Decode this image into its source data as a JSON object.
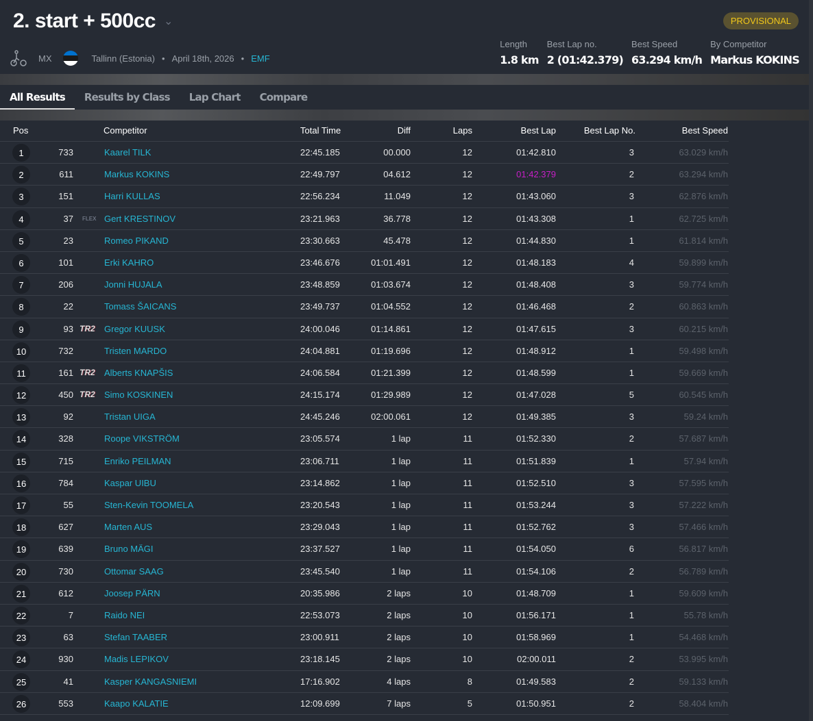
{
  "header": {
    "title": "2. start + 500cc",
    "sport": "MX",
    "location": "Tallinn (Estonia)",
    "date": "April 18th, 2026",
    "organizer": "EMF",
    "status": "PROVISIONAL",
    "stats": [
      {
        "label": "Length",
        "value": "1.8 km"
      },
      {
        "label": "Best Lap no.",
        "value": "2 (01:42.379)"
      },
      {
        "label": "Best Speed",
        "value": "63.294 km/h"
      },
      {
        "label": "By Competitor",
        "value": "Markus KOKINS"
      }
    ],
    "flag_colors": [
      "#0072ce",
      "#000000",
      "#ffffff"
    ]
  },
  "tabs": [
    "All Results",
    "Results by Class",
    "Lap Chart",
    "Compare"
  ],
  "table": {
    "columns": [
      "Pos",
      "Competitor",
      "Total Time",
      "Diff",
      "Laps",
      "Best Lap",
      "Best Lap No.",
      "Best Speed"
    ],
    "highlight_color": "#c71fc7",
    "rows": [
      [
        "1",
        "733",
        "",
        "Kaarel TILK",
        "22:45.185",
        "00.000",
        "12",
        "01:42.810",
        "3",
        "63.029 km/h"
      ],
      [
        "2",
        "611",
        "",
        "Markus KOKINS",
        "22:49.797",
        "04.612",
        "12",
        "01:42.379",
        "2",
        "63.294 km/h"
      ],
      [
        "3",
        "151",
        "",
        "Harri KULLAS",
        "22:56.234",
        "11.049",
        "12",
        "01:43.060",
        "3",
        "62.876 km/h"
      ],
      [
        "4",
        "37",
        "FLEX",
        "Gert KRESTINOV",
        "23:21.963",
        "36.778",
        "12",
        "01:43.308",
        "1",
        "62.725 km/h"
      ],
      [
        "5",
        "23",
        "",
        "Romeo PIKAND",
        "23:30.663",
        "45.478",
        "12",
        "01:44.830",
        "1",
        "61.814 km/h"
      ],
      [
        "6",
        "101",
        "",
        "Erki KAHRO",
        "23:46.676",
        "01:01.491",
        "12",
        "01:48.183",
        "4",
        "59.899 km/h"
      ],
      [
        "7",
        "206",
        "",
        "Jonni HUJALA",
        "23:48.859",
        "01:03.674",
        "12",
        "01:48.408",
        "3",
        "59.774 km/h"
      ],
      [
        "8",
        "22",
        "",
        "Tomass ŠAICANS",
        "23:49.737",
        "01:04.552",
        "12",
        "01:46.468",
        "2",
        "60.863 km/h"
      ],
      [
        "9",
        "93",
        "TR2",
        "Gregor KUUSK",
        "24:00.046",
        "01:14.861",
        "12",
        "01:47.615",
        "3",
        "60.215 km/h"
      ],
      [
        "10",
        "732",
        "",
        "Tristen MARDO",
        "24:04.881",
        "01:19.696",
        "12",
        "01:48.912",
        "1",
        "59.498 km/h"
      ],
      [
        "11",
        "161",
        "TR2",
        "Alberts KNAPŠIS",
        "24:06.584",
        "01:21.399",
        "12",
        "01:48.599",
        "1",
        "59.669 km/h"
      ],
      [
        "12",
        "450",
        "TR2",
        "Simo KOSKINEN",
        "24:15.174",
        "01:29.989",
        "12",
        "01:47.028",
        "5",
        "60.545 km/h"
      ],
      [
        "13",
        "92",
        "",
        "Tristan UIGA",
        "24:45.246",
        "02:00.061",
        "12",
        "01:49.385",
        "3",
        "59.24 km/h"
      ],
      [
        "14",
        "328",
        "",
        "Roope VIKSTRÖM",
        "23:05.574",
        "1 lap",
        "11",
        "01:52.330",
        "2",
        "57.687 km/h"
      ],
      [
        "15",
        "715",
        "",
        "Enriko PEILMAN",
        "23:06.711",
        "1 lap",
        "11",
        "01:51.839",
        "1",
        "57.94 km/h"
      ],
      [
        "16",
        "784",
        "",
        "Kaspar UIBU",
        "23:14.862",
        "1 lap",
        "11",
        "01:52.510",
        "3",
        "57.595 km/h"
      ],
      [
        "17",
        "55",
        "",
        "Sten-Kevin TOOMELA",
        "23:20.543",
        "1 lap",
        "11",
        "01:53.244",
        "3",
        "57.222 km/h"
      ],
      [
        "18",
        "627",
        "",
        "Marten AUS",
        "23:29.043",
        "1 lap",
        "11",
        "01:52.762",
        "3",
        "57.466 km/h"
      ],
      [
        "19",
        "639",
        "",
        "Bruno MÄGI",
        "23:37.527",
        "1 lap",
        "11",
        "01:54.050",
        "6",
        "56.817 km/h"
      ],
      [
        "20",
        "730",
        "",
        "Ottomar SAAG",
        "23:45.540",
        "1 lap",
        "11",
        "01:54.106",
        "2",
        "56.789 km/h"
      ],
      [
        "21",
        "612",
        "",
        "Joosep PÄRN",
        "20:35.986",
        "2 laps",
        "10",
        "01:48.709",
        "1",
        "59.609 km/h"
      ],
      [
        "22",
        "7",
        "",
        "Raido NEI",
        "22:53.073",
        "2 laps",
        "10",
        "01:56.171",
        "1",
        "55.78 km/h"
      ],
      [
        "23",
        "63",
        "",
        "Stefan TAABER",
        "23:00.911",
        "2 laps",
        "10",
        "01:58.969",
        "1",
        "54.468 km/h"
      ],
      [
        "24",
        "930",
        "",
        "Madis LEPIKOV",
        "23:18.145",
        "2 laps",
        "10",
        "02:00.011",
        "2",
        "53.995 km/h"
      ],
      [
        "25",
        "41",
        "",
        "Kasper KANGASNIEMI",
        "17:16.902",
        "4 laps",
        "8",
        "01:49.583",
        "2",
        "59.133 km/h"
      ],
      [
        "26",
        "553",
        "",
        "Kaapo KALATIE",
        "12:09.699",
        "7 laps",
        "5",
        "01:50.951",
        "2",
        "58.404 km/h"
      ]
    ]
  }
}
